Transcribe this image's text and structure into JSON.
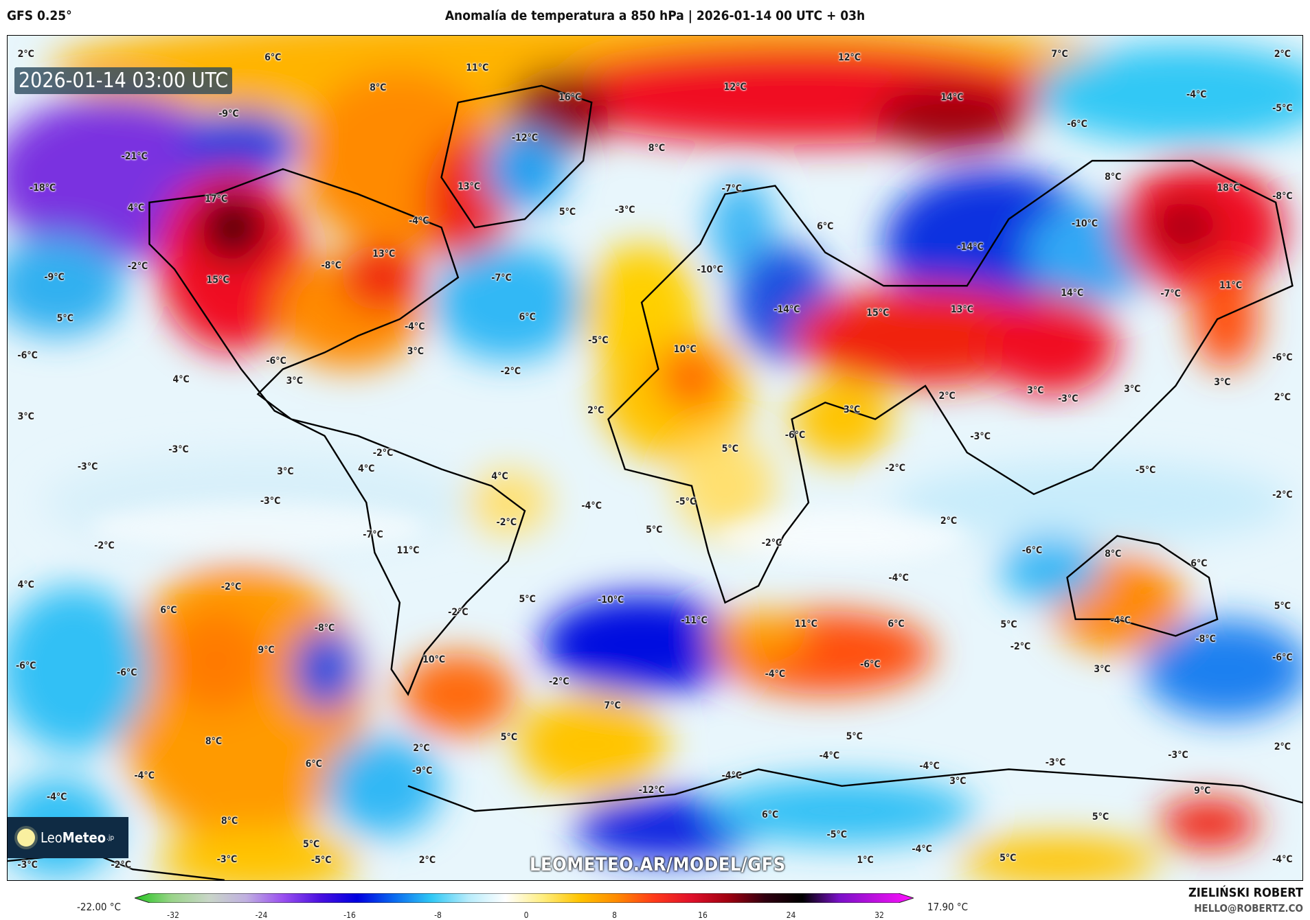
{
  "header": {
    "model": "GFS 0.25°",
    "title": "Anomalía de temperatura a 850 hPa | 2026-01-14 00 UTC + 03h"
  },
  "map": {
    "valid_time": "2026-01-14 03:00 UTC",
    "watermark_url": "LEOMETEO.AR/MODEL/GFS",
    "logo": {
      "name_light": "Leo",
      "name_bold": "Meteo",
      "suffix": ".jp"
    },
    "labels": [
      "2°C",
      "6°C",
      "11°C",
      "8°C",
      "16°C",
      "12°C",
      "7°C",
      "2°C",
      "12°C",
      "14°C",
      "-4°C",
      "-5°C",
      "-9°C",
      "-12°C",
      "-6°C",
      "8°C",
      "-21°C",
      "13°C",
      "-18°C",
      "17°C",
      "4°C",
      "-7°C",
      "8°C",
      "18°C",
      "-8°C",
      "5°C",
      "-3°C",
      "-4°C",
      "6°C",
      "-10°C",
      "-14°C",
      "13°C",
      "-2°C",
      "-8°C",
      "-9°C",
      "15°C",
      "-7°C",
      "-10°C",
      "14°C",
      "11°C",
      "-7°C",
      "5°C",
      "6°C",
      "-14°C",
      "15°C",
      "13°C",
      "-4°C",
      "-5°C",
      "10°C",
      "-6°C",
      "3°C",
      "-2°C",
      "-6°C",
      "3°C",
      "4°C",
      "-6°C",
      "3°C",
      "3°C",
      "2°C",
      "2°C",
      "3°C",
      "-3°C",
      "3°C",
      "2°C",
      "3°C",
      "-3°C",
      "-6°C",
      "-3°C",
      "-2°C",
      "-3°C",
      "3°C",
      "4°C",
      "5°C",
      "-2°C",
      "-5°C",
      "4°C",
      "-3°C",
      "-4°C",
      "-5°C",
      "-2°C",
      "-2°C",
      "2°C",
      "-7°C",
      "5°C",
      "-2°C",
      "11°C",
      "-2°C",
      "-6°C",
      "8°C",
      "6°C",
      "4°C",
      "-2°C",
      "-4°C",
      "5°C",
      "-10°C",
      "6°C",
      "-2°C",
      "-11°C",
      "11°C",
      "6°C",
      "-8°C",
      "5°C",
      "-4°C",
      "5°C",
      "-2°C",
      "-8°C",
      "9°C",
      "-6°C",
      "-6°C",
      "10°C",
      "-6°C",
      "-4°C",
      "3°C",
      "-6°C",
      "-2°C",
      "7°C",
      "8°C",
      "5°C",
      "5°C",
      "2°C",
      "6°C",
      "-4°C",
      "-4°C",
      "-3°C",
      "-3°C",
      "2°C",
      "-9°C",
      "-4°C",
      "-4°C",
      "3°C",
      "-12°C",
      "9°C",
      "-4°C",
      "6°C",
      "5°C",
      "8°C",
      "-5°C",
      "5°C",
      "-4°C",
      "-3°C",
      "-5°C",
      "2°C",
      "1°C",
      "5°C",
      "-4°C",
      "-3°C",
      "-2°C"
    ]
  },
  "colorbar": {
    "min_label": "-22.00 °C",
    "max_label": "17.90 °C",
    "ticks": [
      "-32",
      "-24",
      "-16",
      "-8",
      "0",
      "8",
      "16",
      "24",
      "32"
    ],
    "colors": [
      "#22c41e",
      "#9ad48a",
      "#c9d6c8",
      "#c0b0e0",
      "#9a50f0",
      "#4a10e0",
      "#0000e0",
      "#0a6af0",
      "#30c8f5",
      "#b8ecfb",
      "#ffffff",
      "#ffee80",
      "#ffc400",
      "#ff8a00",
      "#ff3a1a",
      "#e0102a",
      "#a00010",
      "#300010",
      "#000000",
      "#7a10c8",
      "#c010e0",
      "#ff10ff"
    ]
  },
  "credits": {
    "author": "ZIELIŃSKI ROBERT",
    "email": "HELLO@ROBERTZ.CO"
  }
}
